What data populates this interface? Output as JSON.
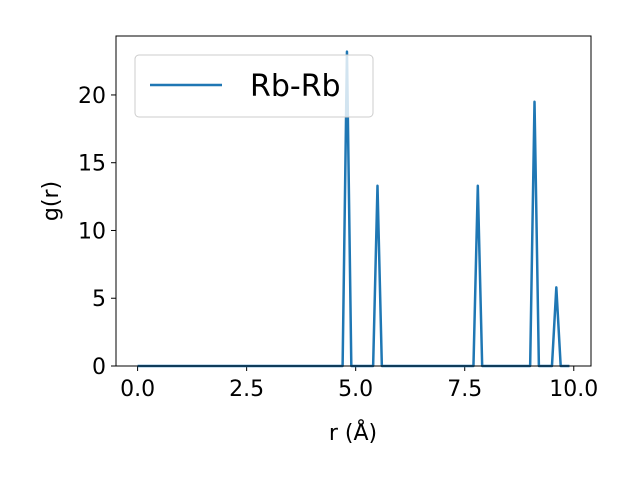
{
  "chart_data": {
    "type": "line",
    "xlabel": "r (Å)",
    "ylabel": "g(r)",
    "x": [
      0,
      0.1,
      0.2,
      0.3,
      0.4,
      0.5,
      0.6,
      0.7,
      0.8,
      0.9,
      1,
      1.1,
      1.2,
      1.3,
      1.4,
      1.5,
      1.6,
      1.7,
      1.8,
      1.9,
      2,
      2.1,
      2.2,
      2.3,
      2.4,
      2.5,
      2.6,
      2.7,
      2.8,
      2.9,
      3,
      3.1,
      3.2,
      3.3,
      3.4,
      3.5,
      3.6,
      3.7,
      3.8,
      3.9,
      4,
      4.1,
      4.2,
      4.3,
      4.4,
      4.5,
      4.6,
      4.7,
      4.8,
      4.9,
      5,
      5.1,
      5.2,
      5.3,
      5.4,
      5.5,
      5.6,
      5.7,
      5.8,
      5.9,
      6,
      6.1,
      6.2,
      6.3,
      6.4,
      6.5,
      6.6,
      6.7,
      6.8,
      6.9,
      7,
      7.1,
      7.2,
      7.3,
      7.4,
      7.5,
      7.6,
      7.7,
      7.8,
      7.9,
      8,
      8.1,
      8.2,
      8.3,
      8.4,
      8.5,
      8.6,
      8.7,
      8.8,
      8.9,
      9,
      9.1,
      9.2,
      9.3,
      9.4,
      9.5,
      9.6,
      9.7,
      9.8,
      9.9
    ],
    "series": [
      {
        "name": "Rb-Rb",
        "color": "#1f77b4",
        "values": [
          0,
          0,
          0,
          0,
          0,
          0,
          0,
          0,
          0,
          0,
          0,
          0,
          0,
          0,
          0,
          0,
          0,
          0,
          0,
          0,
          0,
          0,
          0,
          0,
          0,
          0,
          0,
          0,
          0,
          0,
          0,
          0,
          0,
          0,
          0,
          0,
          0,
          0,
          0,
          0,
          0,
          0,
          0,
          0,
          0,
          0,
          0,
          0,
          23.2,
          0,
          0,
          0,
          0,
          0,
          0,
          13.3,
          0,
          0,
          0,
          0,
          0,
          0,
          0,
          0,
          0,
          0,
          0,
          0,
          0,
          0,
          0,
          0,
          0,
          0,
          0,
          0,
          0,
          0,
          13.3,
          0,
          0,
          0,
          0,
          0,
          0,
          0,
          0,
          0,
          0,
          0,
          0,
          19.5,
          0,
          0,
          0,
          0,
          5.8,
          0,
          0,
          0
        ]
      }
    ],
    "xlim": [
      -0.495,
      10.395
    ],
    "ylim": [
      0,
      24.35
    ],
    "xticks": [
      {
        "value": 0,
        "label": "0.0"
      },
      2.5,
      {
        "value": 5,
        "label": "5.0"
      },
      7.5,
      {
        "value": 10,
        "label": "10.0"
      }
    ],
    "yticks": [
      0,
      5,
      10,
      15,
      20
    ],
    "legend": "upper left"
  }
}
